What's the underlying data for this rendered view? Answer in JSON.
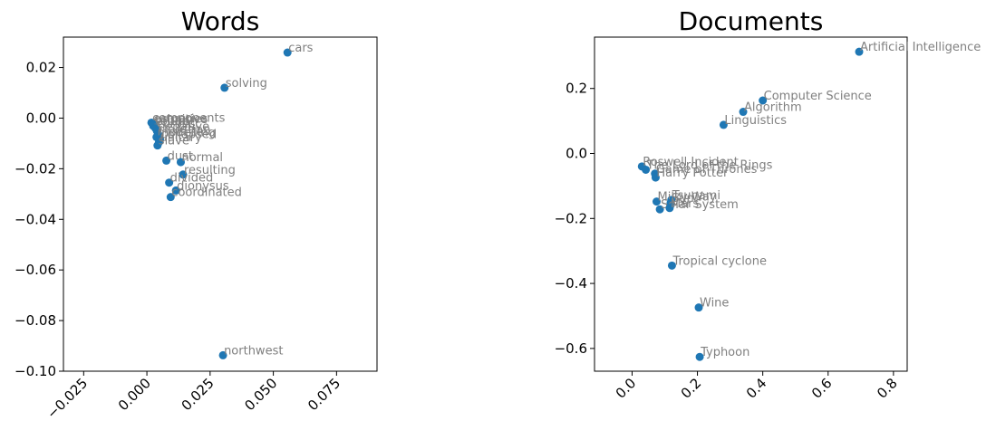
{
  "chart_data": [
    {
      "type": "scatter",
      "title": "Words",
      "xlabel": "",
      "ylabel": "",
      "xlim": [
        -0.033,
        0.091
      ],
      "ylim": [
        -0.1,
        0.032
      ],
      "xticks": [
        -0.025,
        0.0,
        0.025,
        0.05,
        0.075
      ],
      "xtick_labels": [
        "−0.025",
        "0.000",
        "0.025",
        "0.050",
        "0.075"
      ],
      "yticks": [
        0.02,
        0.0,
        -0.02,
        -0.04,
        -0.06,
        -0.08,
        -0.1
      ],
      "ytick_labels": [
        "0.02",
        "0.00",
        "−0.02",
        "−0.04",
        "−0.06",
        "−0.08",
        "−0.10"
      ],
      "grid": false,
      "marker_color": "#1f77b4",
      "label_color": "#808080",
      "points": [
        {
          "label": "cars",
          "x": 0.0556,
          "y": 0.0259
        },
        {
          "label": "solving",
          "x": 0.0307,
          "y": 0.012
        },
        {
          "label": "estuaries",
          "x": 0.0023,
          "y": -0.0022
        },
        {
          "label": "components",
          "x": 0.0018,
          "y": -0.0018
        },
        {
          "label": "entire",
          "x": 0.003,
          "y": -0.003
        },
        {
          "label": "primitive",
          "x": 0.0028,
          "y": -0.0024
        },
        {
          "label": "sought",
          "x": 0.0025,
          "y": -0.0031
        },
        {
          "label": "conflict",
          "x": 0.0034,
          "y": -0.004
        },
        {
          "label": "negative",
          "x": 0.004,
          "y": -0.0052
        },
        {
          "label": "ripostian",
          "x": 0.0045,
          "y": -0.0064
        },
        {
          "label": "modelling",
          "x": 0.0038,
          "y": -0.0075
        },
        {
          "label": "collapsed",
          "x": 0.0052,
          "y": -0.0083
        },
        {
          "label": "unitary",
          "x": 0.0048,
          "y": -0.0095
        },
        {
          "label": "slave",
          "x": 0.0042,
          "y": -0.0108
        },
        {
          "label": "dust",
          "x": 0.0077,
          "y": -0.0168
        },
        {
          "label": "normal",
          "x": 0.0134,
          "y": -0.0174
        },
        {
          "label": "resulting",
          "x": 0.0143,
          "y": -0.0223
        },
        {
          "label": "divided",
          "x": 0.0088,
          "y": -0.0255
        },
        {
          "label": "dionysus",
          "x": 0.0115,
          "y": -0.0286
        },
        {
          "label": "coordinated",
          "x": 0.0094,
          "y": -0.0312
        },
        {
          "label": "northwest",
          "x": 0.0301,
          "y": -0.0937
        }
      ]
    },
    {
      "type": "scatter",
      "title": "Documents",
      "xlabel": "",
      "ylabel": "",
      "xlim": [
        -0.115,
        0.842
      ],
      "ylim": [
        -0.67,
        0.358
      ],
      "xticks": [
        0.0,
        0.2,
        0.4,
        0.6,
        0.8
      ],
      "xtick_labels": [
        "0.0",
        "0.2",
        "0.4",
        "0.6",
        "0.8"
      ],
      "yticks": [
        0.2,
        0.0,
        -0.2,
        -0.4,
        -0.6
      ],
      "ytick_labels": [
        "0.2",
        "0.0",
        "−0.2",
        "−0.4",
        "−0.6"
      ],
      "grid": false,
      "marker_color": "#1f77b4",
      "label_color": "#808080",
      "points": [
        {
          "label": "Artificial Intelligence",
          "x": 0.695,
          "y": 0.313
        },
        {
          "label": "Computer Science",
          "x": 0.4,
          "y": 0.163
        },
        {
          "label": "Algorithm",
          "x": 0.34,
          "y": 0.128
        },
        {
          "label": "Linguistics",
          "x": 0.28,
          "y": 0.088
        },
        {
          "label": "Roswell Incident",
          "x": 0.03,
          "y": -0.04
        },
        {
          "label": "The Lord of the Rings",
          "x": 0.042,
          "y": -0.05
        },
        {
          "label": "Game of Thrones",
          "x": 0.07,
          "y": -0.062
        },
        {
          "label": "Harry Potter",
          "x": 0.072,
          "y": -0.074
        },
        {
          "label": "Tsunami",
          "x": 0.12,
          "y": -0.143
        },
        {
          "label": "Milky Way",
          "x": 0.075,
          "y": -0.148
        },
        {
          "label": "Sun",
          "x": 0.118,
          "y": -0.152
        },
        {
          "label": "Solar System",
          "x": 0.085,
          "y": -0.172
        },
        {
          "label": "Mars",
          "x": 0.115,
          "y": -0.168
        },
        {
          "label": "Tropical cyclone",
          "x": 0.122,
          "y": -0.345
        },
        {
          "label": "Wine",
          "x": 0.204,
          "y": -0.474
        },
        {
          "label": "Typhoon",
          "x": 0.207,
          "y": -0.626
        }
      ]
    }
  ]
}
